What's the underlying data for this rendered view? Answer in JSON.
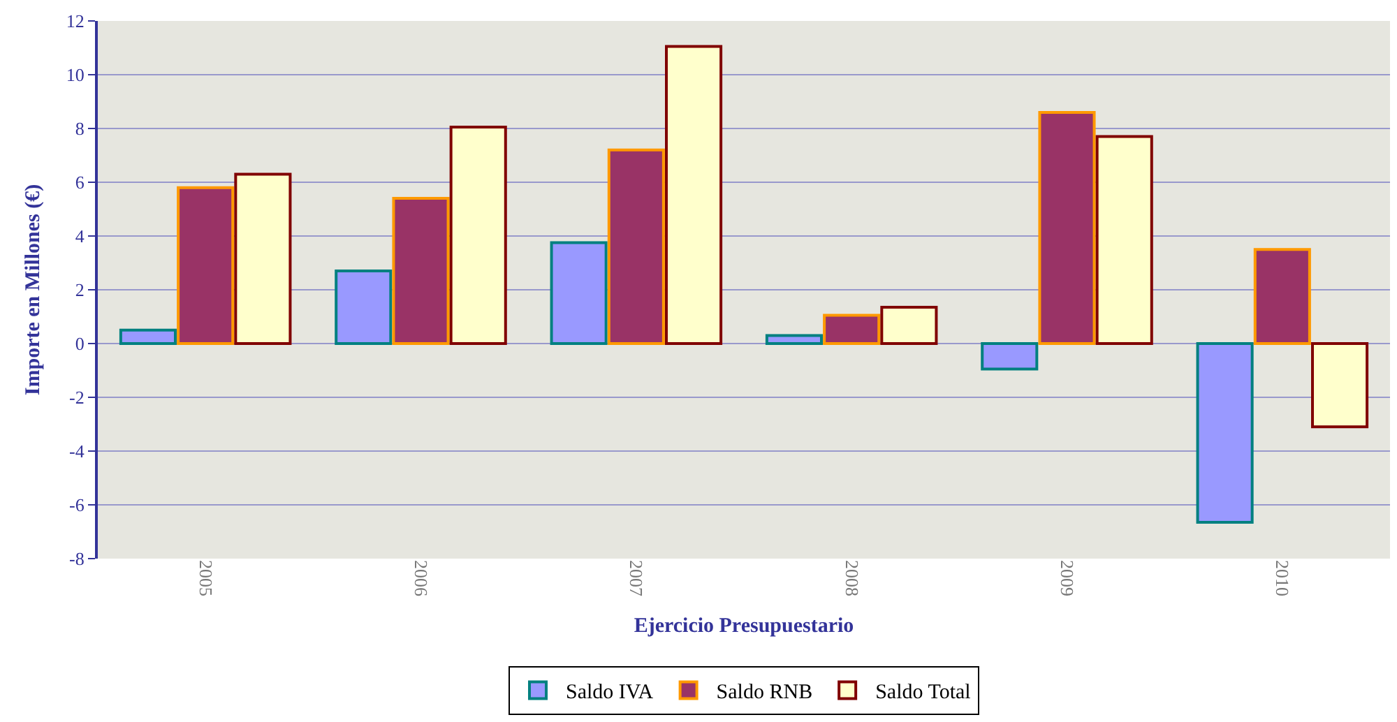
{
  "chart_data": {
    "type": "bar",
    "xlabel": "Ejercicio Presupuestario",
    "ylabel": "Importe en Millones (€)",
    "categories": [
      "2005",
      "2006",
      "2007",
      "2008",
      "2009",
      "2010"
    ],
    "series": [
      {
        "name": "Saldo IVA",
        "color": "#9999ff",
        "values": [
          0.5,
          2.7,
          3.75,
          0.3,
          -0.95,
          -6.65
        ]
      },
      {
        "name": "Saldo RNB",
        "color": "#993366",
        "values": [
          5.8,
          5.4,
          7.2,
          1.05,
          8.6,
          3.5
        ]
      },
      {
        "name": "Saldo Total",
        "color": "#ffffcc",
        "values": [
          6.3,
          8.05,
          11.05,
          1.35,
          7.7,
          -3.1
        ]
      }
    ],
    "ylim": [
      -8,
      12
    ],
    "yticks": [
      -8,
      -6,
      -4,
      -2,
      0,
      2,
      4,
      6,
      8,
      10,
      12
    ],
    "grid": "y",
    "legend": "bottom"
  }
}
